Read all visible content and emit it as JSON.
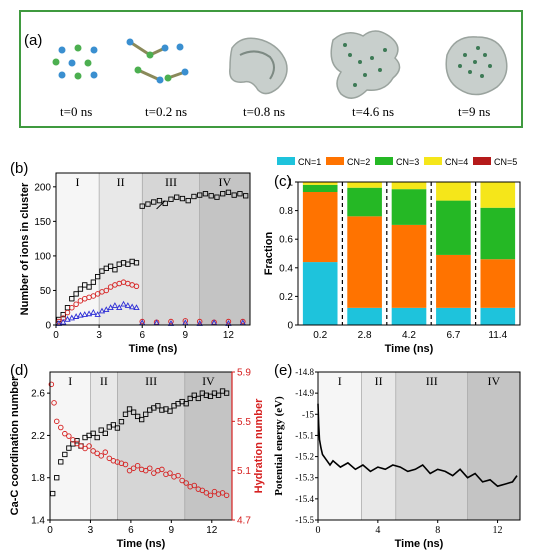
{
  "panel_a": {
    "label": "(a)",
    "snapshots": [
      {
        "time_label": "t=0 ns"
      },
      {
        "time_label": "t=0.2 ns"
      },
      {
        "time_label": "t=0.8 ns"
      },
      {
        "time_label": "t=4.6 ns"
      },
      {
        "time_label": "t=9 ns"
      }
    ]
  },
  "colors": {
    "frame": "#3f9a3f",
    "black": "#000000",
    "red": "#d62020",
    "blue": "#2c2cd6",
    "green_ion": "#4caf50",
    "blue_ion": "#3a8fd0"
  },
  "chart_data": [
    {
      "panel": "(b)",
      "type": "scatter",
      "xlabel": "Time (ns)",
      "ylabel": "Number of ions in cluster",
      "xlim": [
        0,
        13.5
      ],
      "ylim": [
        0,
        220
      ],
      "xticks": [
        0,
        3,
        6,
        9,
        12
      ],
      "yticks": [
        0,
        50,
        100,
        150,
        200
      ],
      "stages": [
        "I",
        "II",
        "III",
        "IV"
      ],
      "stage_bounds": [
        0,
        3,
        6,
        10,
        13.5
      ],
      "series": [
        {
          "color": "#000000",
          "marker": "square",
          "x": [
            0.2,
            0.5,
            0.8,
            1.1,
            1.4,
            1.7,
            2.0,
            2.3,
            2.6,
            2.9,
            3.2,
            3.5,
            3.8,
            4.1,
            4.4,
            4.7,
            5.0,
            5.3,
            5.6,
            6.0,
            6.4,
            6.8,
            7.2,
            7.6,
            8.0,
            8.4,
            8.8,
            9.2,
            9.6,
            10.0,
            10.4,
            10.8,
            11.2,
            11.6,
            12.0,
            12.4,
            12.8,
            13.2
          ],
          "y": [
            8,
            15,
            25,
            38,
            45,
            52,
            58,
            55,
            62,
            70,
            78,
            82,
            85,
            80,
            88,
            90,
            88,
            92,
            90,
            172,
            175,
            178,
            180,
            176,
            182,
            185,
            183,
            180,
            186,
            188,
            190,
            187,
            185,
            190,
            192,
            188,
            190,
            187
          ]
        },
        {
          "color": "#d62020",
          "marker": "circle",
          "x": [
            0.2,
            0.5,
            0.8,
            1.1,
            1.4,
            1.7,
            2.0,
            2.3,
            2.6,
            2.9,
            3.2,
            3.5,
            3.8,
            4.1,
            4.4,
            4.7,
            5.0,
            5.3,
            5.6,
            6.0,
            7.0,
            8.0,
            9.0,
            10.0,
            11.0,
            12.0,
            13.0
          ],
          "y": [
            5,
            10,
            18,
            25,
            30,
            35,
            38,
            40,
            42,
            45,
            48,
            50,
            55,
            58,
            60,
            62,
            60,
            58,
            56,
            5,
            4,
            5,
            6,
            5,
            4,
            5,
            5
          ]
        },
        {
          "color": "#2c2cd6",
          "marker": "triangle",
          "x": [
            0.2,
            0.5,
            0.8,
            1.1,
            1.4,
            1.7,
            2.0,
            2.3,
            2.6,
            2.9,
            3.2,
            3.5,
            3.8,
            4.1,
            4.4,
            4.7,
            5.0,
            5.3,
            5.6,
            6.0,
            7.0,
            8.0,
            9.0,
            10.0,
            11.0,
            12.0,
            13.0
          ],
          "y": [
            2,
            4,
            8,
            10,
            12,
            14,
            15,
            16,
            18,
            15,
            20,
            22,
            25,
            28,
            25,
            30,
            28,
            26,
            25,
            3,
            3,
            2,
            3,
            2,
            3,
            2,
            3
          ]
        }
      ]
    },
    {
      "panel": "(c)",
      "type": "bar",
      "stacked": true,
      "xlabel": "Time (ns)",
      "ylabel": "Fraction",
      "categories": [
        "0.2",
        "2.8",
        "4.2",
        "6.7",
        "11.4"
      ],
      "ylim": [
        0,
        1
      ],
      "yticks": [
        0,
        0.2,
        0.4,
        0.6,
        0.8,
        1
      ],
      "legend_position": "top",
      "series": [
        {
          "name": "CN=1",
          "color": "#1ec3dc",
          "values": [
            0.44,
            0.12,
            0.12,
            0.12,
            0.12
          ]
        },
        {
          "name": "CN=2",
          "color": "#ff7300",
          "values": [
            0.49,
            0.64,
            0.58,
            0.37,
            0.34
          ]
        },
        {
          "name": "CN=3",
          "color": "#25b825",
          "values": [
            0.05,
            0.2,
            0.25,
            0.38,
            0.36
          ]
        },
        {
          "name": "CN=4",
          "color": "#f5e61a",
          "values": [
            0.02,
            0.04,
            0.05,
            0.13,
            0.18
          ]
        },
        {
          "name": "CN=5",
          "color": "#b51a1a",
          "values": [
            0.0,
            0.0,
            0.0,
            0.0,
            0.0
          ]
        }
      ]
    },
    {
      "panel": "(d)",
      "type": "scatter",
      "xlabel": "Time (ns)",
      "ylabel": "Ca-C coordination number",
      "ylabel_right": "Hydration number",
      "xlim": [
        0,
        13.5
      ],
      "ylim": [
        1.4,
        2.8
      ],
      "ylim_right": [
        4.7,
        5.9
      ],
      "xticks": [
        0,
        3,
        6,
        9,
        12
      ],
      "yticks": [
        1.4,
        1.8,
        2.2,
        2.6
      ],
      "yticks_right": [
        4.7,
        5.1,
        5.5,
        5.9
      ],
      "stages": [
        "I",
        "II",
        "III",
        "IV"
      ],
      "stage_bounds": [
        0,
        3,
        5,
        10,
        13.5
      ],
      "series": [
        {
          "color": "#000000",
          "marker": "square",
          "axis": "left",
          "x": [
            0.2,
            0.5,
            0.8,
            1.1,
            1.4,
            1.7,
            2.0,
            2.3,
            2.6,
            2.9,
            3.2,
            3.5,
            3.8,
            4.1,
            4.4,
            4.7,
            5.0,
            5.3,
            5.6,
            5.9,
            6.2,
            6.5,
            6.8,
            7.1,
            7.4,
            7.7,
            8.0,
            8.3,
            8.6,
            8.9,
            9.2,
            9.5,
            9.8,
            10.1,
            10.4,
            10.7,
            11.0,
            11.3,
            11.6,
            11.9,
            12.2,
            12.5,
            12.8,
            13.1
          ],
          "y": [
            1.65,
            1.8,
            1.95,
            2.02,
            2.08,
            2.12,
            2.15,
            2.1,
            2.18,
            2.2,
            2.22,
            2.18,
            2.25,
            2.22,
            2.28,
            2.3,
            2.27,
            2.33,
            2.4,
            2.45,
            2.42,
            2.38,
            2.35,
            2.4,
            2.44,
            2.46,
            2.48,
            2.44,
            2.45,
            2.43,
            2.48,
            2.5,
            2.52,
            2.5,
            2.55,
            2.58,
            2.55,
            2.6,
            2.58,
            2.57,
            2.6,
            2.58,
            2.62,
            2.6
          ]
        },
        {
          "color": "#d62020",
          "marker": "circle",
          "axis": "right",
          "x": [
            0.1,
            0.3,
            0.5,
            0.8,
            1.1,
            1.4,
            1.7,
            2.0,
            2.3,
            2.6,
            2.9,
            3.2,
            3.5,
            3.8,
            4.1,
            4.4,
            4.7,
            5.0,
            5.3,
            5.6,
            5.9,
            6.2,
            6.5,
            6.8,
            7.1,
            7.4,
            7.7,
            8.0,
            8.3,
            8.6,
            8.9,
            9.2,
            9.5,
            9.8,
            10.1,
            10.4,
            10.7,
            11.0,
            11.3,
            11.6,
            11.9,
            12.2,
            12.5,
            12.8,
            13.1
          ],
          "y": [
            5.8,
            5.65,
            5.5,
            5.45,
            5.4,
            5.38,
            5.35,
            5.32,
            5.3,
            5.28,
            5.3,
            5.26,
            5.24,
            5.22,
            5.25,
            5.2,
            5.18,
            5.17,
            5.16,
            5.15,
            5.1,
            5.12,
            5.14,
            5.11,
            5.1,
            5.12,
            5.08,
            5.1,
            5.11,
            5.07,
            5.08,
            5.05,
            5.06,
            5.02,
            5.0,
            4.97,
            4.98,
            4.95,
            4.94,
            4.92,
            4.9,
            4.93,
            4.91,
            4.92,
            4.9
          ]
        }
      ]
    },
    {
      "panel": "(e)",
      "type": "line",
      "xlabel": "Time (ns)",
      "ylabel": "Potential energy (eV)",
      "xlim": [
        0,
        13.5
      ],
      "ylim": [
        -15.5,
        -14.8
      ],
      "xticks": [
        0,
        4,
        8,
        12
      ],
      "yticks": [
        -15.5,
        -15.4,
        -15.3,
        -15.2,
        -15.1,
        -15.0,
        -14.9,
        -14.8
      ],
      "ytick_labels": [
        "-15.5",
        "-15.4",
        "-15.3",
        "-15.2",
        "-15.1",
        "-15",
        "-14.9",
        "-14.8"
      ],
      "stages": [
        "I",
        "II",
        "III",
        "IV"
      ],
      "stage_bounds": [
        0,
        2.9,
        5.2,
        10,
        13.5
      ],
      "series": [
        {
          "color": "#000000",
          "x": [
            0,
            0.05,
            0.1,
            0.2,
            0.3,
            0.5,
            0.8,
            1.0,
            1.5,
            2.0,
            2.5,
            3.0,
            3.5,
            4.0,
            4.5,
            5.0,
            5.5,
            6.0,
            6.5,
            7.0,
            7.5,
            8.0,
            8.5,
            9.0,
            9.5,
            10.0,
            10.5,
            11.0,
            11.5,
            12.0,
            12.5,
            13.0,
            13.3
          ],
          "y": [
            -14.95,
            -15.05,
            -15.12,
            -15.16,
            -15.19,
            -15.21,
            -15.24,
            -15.22,
            -15.25,
            -15.23,
            -15.26,
            -15.24,
            -15.27,
            -15.25,
            -15.26,
            -15.24,
            -15.25,
            -15.27,
            -15.26,
            -15.24,
            -15.28,
            -15.26,
            -15.27,
            -15.29,
            -15.26,
            -15.3,
            -15.28,
            -15.32,
            -15.31,
            -15.34,
            -15.33,
            -15.32,
            -15.29
          ]
        }
      ]
    }
  ],
  "annotations": {
    "panel_b_stage_labels": [
      "I",
      "II",
      "III",
      "IV"
    ]
  }
}
